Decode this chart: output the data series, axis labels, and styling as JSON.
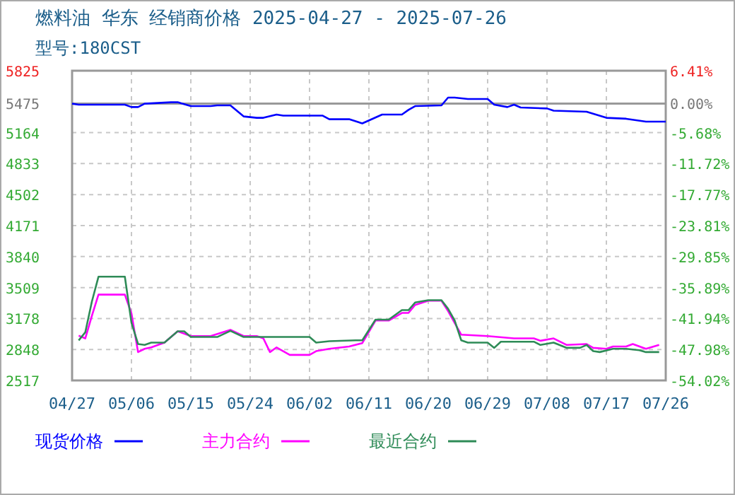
{
  "chart_data": {
    "type": "line",
    "title": "燃料油 华东 经销商价格 2025-04-27 - 2025-07-26",
    "subtitle": "型号:180CST",
    "xlim": [
      "2025-04-27",
      "2025-07-26"
    ],
    "xticks": [
      {
        "value": "2025-04-27",
        "label": "04/27"
      },
      {
        "value": "2025-05-06",
        "label": "05/06"
      },
      {
        "value": "2025-05-15",
        "label": "05/15"
      },
      {
        "value": "2025-05-24",
        "label": "05/24"
      },
      {
        "value": "2025-06-02",
        "label": "06/02"
      },
      {
        "value": "2025-06-11",
        "label": "06/11"
      },
      {
        "value": "2025-06-20",
        "label": "06/20"
      },
      {
        "value": "2025-06-29",
        "label": "06/29"
      },
      {
        "value": "2025-07-08",
        "label": "07/08"
      },
      {
        "value": "2025-07-17",
        "label": "07/17"
      },
      {
        "value": "2025-07-26",
        "label": "07/26"
      }
    ],
    "ylim": [
      2517,
      5825
    ],
    "yticks": [
      5825,
      5475,
      5164,
      4833,
      4502,
      4171,
      3840,
      3509,
      3178,
      2848,
      2517
    ],
    "y2lim": [
      -54.02,
      6.41
    ],
    "y2ticks": [
      {
        "value": 6.41,
        "label": "6.41%"
      },
      {
        "value": 0,
        "label": "0.00%"
      },
      {
        "value": -5.68,
        "label": "-5.68%"
      },
      {
        "value": -11.72,
        "label": "-11.72%"
      },
      {
        "value": -17.77,
        "label": "-17.77%"
      },
      {
        "value": -23.81,
        "label": "-23.81%"
      },
      {
        "value": -29.85,
        "label": "-29.85%"
      },
      {
        "value": -35.89,
        "label": "-35.89%"
      },
      {
        "value": -41.94,
        "label": "-41.94%"
      },
      {
        "value": -47.98,
        "label": "-47.98%"
      },
      {
        "value": -54.02,
        "label": "-54.02%"
      }
    ],
    "ref_lines": [
      {
        "axis": "y2",
        "value": 0,
        "color": "#999999"
      }
    ],
    "grid": true,
    "legend": "bottom",
    "line_style": "solid",
    "marker": "none",
    "series": [
      {
        "name": "现货价格",
        "color": "#0000ff",
        "x": [
          "2025-04-27",
          "2025-04-28",
          "2025-05-05",
          "2025-05-06",
          "2025-05-07",
          "2025-05-08",
          "2025-05-12",
          "2025-05-13",
          "2025-05-15",
          "2025-05-18",
          "2025-05-19",
          "2025-05-21",
          "2025-05-23",
          "2025-05-25",
          "2025-05-26",
          "2025-05-28",
          "2025-05-29",
          "2025-06-04",
          "2025-06-05",
          "2025-06-08",
          "2025-06-10",
          "2025-06-13",
          "2025-06-16",
          "2025-06-17",
          "2025-06-18",
          "2025-06-22",
          "2025-06-23",
          "2025-06-24",
          "2025-06-26",
          "2025-06-29",
          "2025-06-30",
          "2025-07-02",
          "2025-07-03",
          "2025-07-04",
          "2025-07-08",
          "2025-07-09",
          "2025-07-14",
          "2025-07-17",
          "2025-07-20",
          "2025-07-23",
          "2025-07-26"
        ],
        "values": [
          5473,
          5462,
          5462,
          5437,
          5437,
          5473,
          5488,
          5488,
          5447,
          5447,
          5455,
          5455,
          5337,
          5322,
          5322,
          5357,
          5345,
          5345,
          5307,
          5307,
          5262,
          5357,
          5357,
          5407,
          5447,
          5455,
          5538,
          5538,
          5523,
          5523,
          5462,
          5437,
          5462,
          5432,
          5422,
          5398,
          5387,
          5322,
          5312,
          5281,
          5281
        ]
      },
      {
        "name": "主力合约",
        "color": "#ff00ff",
        "x": [
          "2025-04-28",
          "2025-04-29",
          "2025-04-30",
          "2025-05-01",
          "2025-05-05",
          "2025-05-06",
          "2025-05-07",
          "2025-05-08",
          "2025-05-09",
          "2025-05-11",
          "2025-05-13",
          "2025-05-15",
          "2025-05-18",
          "2025-05-21",
          "2025-05-23",
          "2025-05-25",
          "2025-05-26",
          "2025-05-27",
          "2025-05-28",
          "2025-05-30",
          "2025-06-02",
          "2025-06-03",
          "2025-06-05",
          "2025-06-08",
          "2025-06-10",
          "2025-06-12",
          "2025-06-14",
          "2025-06-16",
          "2025-06-17",
          "2025-06-18",
          "2025-06-20",
          "2025-06-22",
          "2025-06-23",
          "2025-06-25",
          "2025-06-29",
          "2025-07-03",
          "2025-07-06",
          "2025-07-07",
          "2025-07-09",
          "2025-07-11",
          "2025-07-14",
          "2025-07-15",
          "2025-07-17",
          "2025-07-18",
          "2025-07-20",
          "2025-07-21",
          "2025-07-23",
          "2025-07-25"
        ],
        "values": [
          2996,
          2966,
          3207,
          3434,
          3434,
          3233,
          2820,
          2855,
          2870,
          2921,
          3042,
          2991,
          2991,
          3057,
          2991,
          2991,
          2966,
          2820,
          2870,
          2790,
          2790,
          2830,
          2855,
          2880,
          2916,
          3157,
          3157,
          3238,
          3238,
          3323,
          3369,
          3369,
          3258,
          3006,
          2991,
          2966,
          2966,
          2941,
          2966,
          2896,
          2906,
          2865,
          2855,
          2880,
          2880,
          2906,
          2855,
          2896
        ]
      },
      {
        "name": "最近合约",
        "color": "#2e8b57",
        "x": [
          "2025-04-28",
          "2025-04-29",
          "2025-04-30",
          "2025-05-01",
          "2025-05-05",
          "2025-05-06",
          "2025-05-07",
          "2025-05-08",
          "2025-05-09",
          "2025-05-11",
          "2025-05-13",
          "2025-05-14",
          "2025-05-15",
          "2025-05-19",
          "2025-05-21",
          "2025-05-23",
          "2025-06-02",
          "2025-06-03",
          "2025-06-05",
          "2025-06-09",
          "2025-06-10",
          "2025-06-12",
          "2025-06-14",
          "2025-06-16",
          "2025-06-17",
          "2025-06-18",
          "2025-06-20",
          "2025-06-22",
          "2025-06-23",
          "2025-06-24",
          "2025-06-25",
          "2025-06-26",
          "2025-06-29",
          "2025-06-30",
          "2025-07-01",
          "2025-07-06",
          "2025-07-07",
          "2025-07-09",
          "2025-07-11",
          "2025-07-13",
          "2025-07-14",
          "2025-07-15",
          "2025-07-16",
          "2025-07-18",
          "2025-07-20",
          "2025-07-22",
          "2025-07-23",
          "2025-07-25"
        ],
        "values": [
          2945,
          3031,
          3359,
          3625,
          3625,
          3133,
          2906,
          2896,
          2921,
          2921,
          3042,
          3042,
          2981,
          2981,
          3047,
          2981,
          2981,
          2921,
          2936,
          2946,
          2946,
          3167,
          3167,
          3268,
          3268,
          3349,
          3374,
          3374,
          3283,
          3157,
          2945,
          2921,
          2921,
          2865,
          2931,
          2931,
          2896,
          2921,
          2865,
          2865,
          2896,
          2830,
          2820,
          2855,
          2855,
          2840,
          2820,
          2820
        ]
      }
    ]
  }
}
